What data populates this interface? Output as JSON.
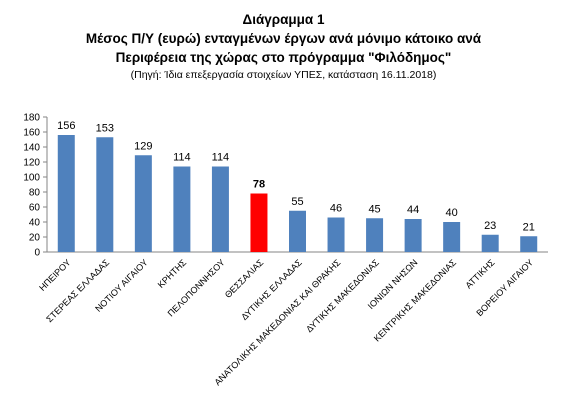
{
  "header": {
    "title_line1": "Διάγραμμα 1",
    "title_line2": "Μέσος Π/Υ (ευρώ)   ενταγμένων έργων ανά μόνιμο κάτοικο ανά",
    "title_line3": "Περιφέρεια της χώρας στο πρόγραμμα  \"Φιλόδημος\"",
    "source": "(Πηγή: Ίδια επεξεργασία στοιχείων ΥΠΕΣ, κατάσταση  16.11.2018)"
  },
  "chart_data": {
    "type": "bar",
    "title": "Διάγραμμα 1",
    "categories": [
      "ΗΠΕΙΡΟΥ",
      "ΣΤΕΡΕΑΣ ΕΛΛΑΔΑΣ",
      "ΝΟΤΙΟΥ ΑΙΓΑΙΟΥ",
      "ΚΡΗΤΗΣ",
      "ΠΕΛΟΠΟΝΝΗΣΟΥ",
      "ΘΕΣΣΑΛΙΑΣ",
      "ΔΥΤΙΚΗΣ ΕΛΛΑΔΑΣ",
      "ΑΝΑΤΟΛΙΚΗΣ ΜΑΚΕΔΟΝΙΑΣ ΚΑΙ ΘΡΑΚΗΣ",
      "ΔΥΤΙΚΗΣ ΜΑΚΕΔΟΝΙΑΣ",
      "ΙΟΝΙΩΝ ΝΗΣΩΝ",
      "ΚΕΝΤΡΙΚΗΣ ΜΑΚΕΔΟΝΙΑΣ",
      "ΑΤΤΙΚΗΣ",
      "ΒΟΡΕΙΟΥ ΑΙΓΑΙΟΥ"
    ],
    "values": [
      156,
      153,
      129,
      114,
      114,
      78,
      55,
      46,
      45,
      44,
      40,
      23,
      21
    ],
    "highlight_category": "ΘΕΣΣΑΛΙΑΣ",
    "ylim": [
      0,
      180
    ],
    "yticks": [
      0,
      20,
      40,
      60,
      80,
      100,
      120,
      140,
      160,
      180
    ],
    "xlabel": "",
    "ylabel": "",
    "grid": false,
    "legend": "none",
    "colors": {
      "bar": "#4f81bd",
      "highlight": "#ff0000",
      "axis": "#868686"
    }
  }
}
